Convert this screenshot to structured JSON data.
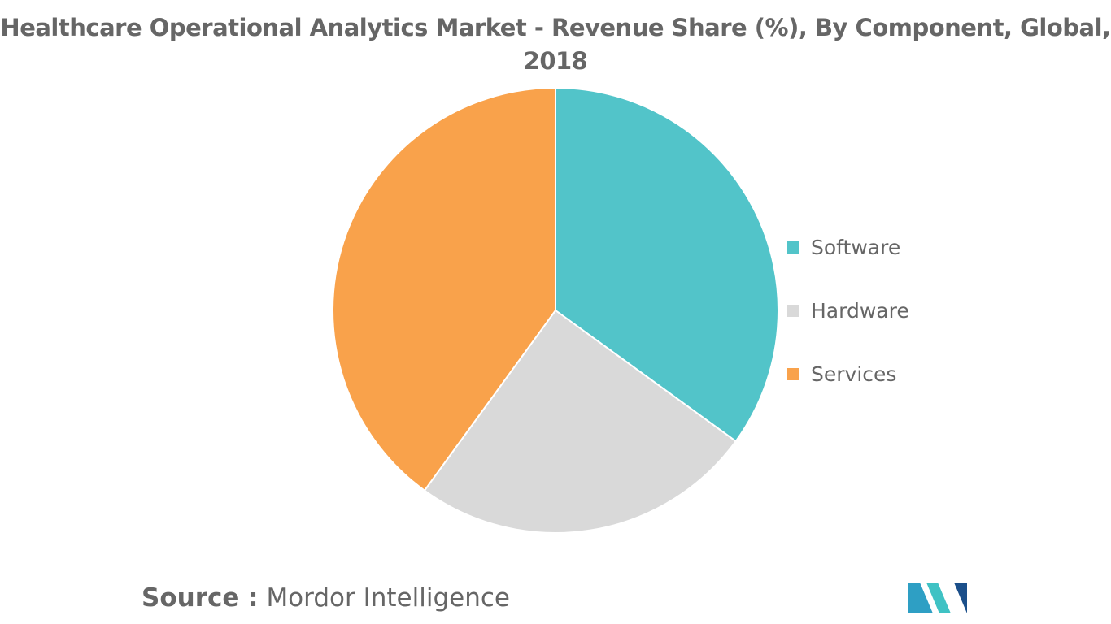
{
  "title": {
    "line1": "Healthcare Operational Analytics Market - Revenue Share (%), By Component, Global,",
    "line2": "2018"
  },
  "chart_data": {
    "type": "pie",
    "title": "Healthcare Operational Analytics Market - Revenue Share (%), By Component, Global, 2018",
    "categories": [
      "Software",
      "Hardware",
      "Services"
    ],
    "values": [
      35,
      25,
      40
    ],
    "colors": [
      "#52c4c9",
      "#d9d9d9",
      "#f9a24b"
    ],
    "start_angle": "12 o'clock",
    "direction": "clockwise",
    "legend_position": "right"
  },
  "source": {
    "label": "Source :",
    "text": "Mordor Intelligence"
  },
  "logo": {
    "icon": "mordor-intelligence-logo-icon",
    "colors": [
      "#2e9fc4",
      "#3fc2c4",
      "#1b4f8a"
    ]
  }
}
